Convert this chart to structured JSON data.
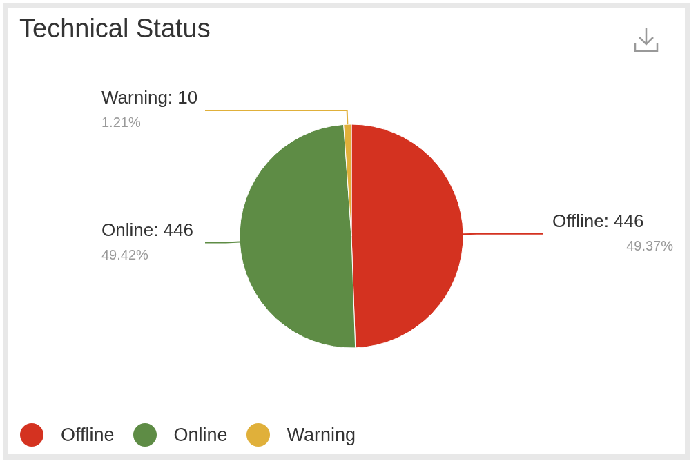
{
  "chart_data": {
    "type": "pie",
    "title": "Technical Status",
    "categories": [
      "Offline",
      "Online",
      "Warning"
    ],
    "values": [
      446,
      446,
      10
    ],
    "colors": [
      "#d43220",
      "#5e8c45",
      "#e0b03a"
    ],
    "value_labels": [
      "Offline: 446",
      "Online: 446",
      "Warning: 10"
    ],
    "annotations": [
      {
        "text": "49.37%",
        "x": "Offline"
      },
      {
        "text": "49.42%",
        "x": "Online"
      },
      {
        "text": "1.21%",
        "x": "Warning"
      }
    ],
    "legend": "bottom left"
  }
}
